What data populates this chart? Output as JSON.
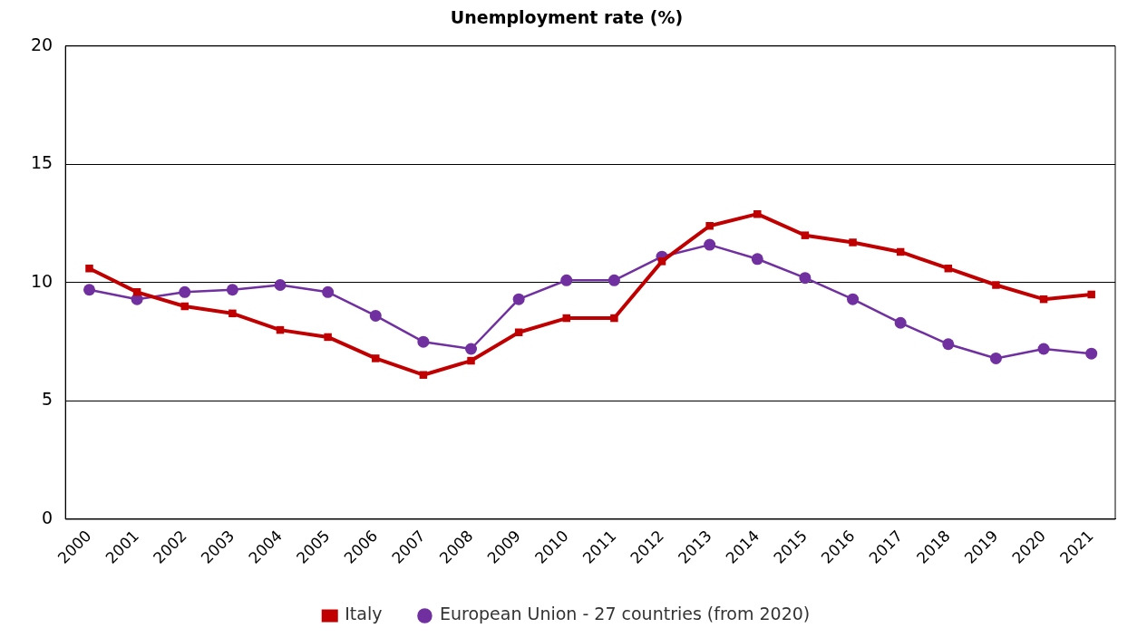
{
  "chart_data": {
    "type": "line",
    "title": "Unemployment rate (%)",
    "categories": [
      "2000",
      "2001",
      "2002",
      "2003",
      "2004",
      "2005",
      "2006",
      "2007",
      "2008",
      "2009",
      "2010",
      "2011",
      "2012",
      "2013",
      "2014",
      "2015",
      "2016",
      "2017",
      "2018",
      "2019",
      "2020",
      "2021"
    ],
    "series": [
      {
        "name": "Italy",
        "color": "#c00000",
        "marker": "square",
        "values": [
          10.6,
          9.6,
          9.0,
          8.7,
          8.0,
          7.7,
          6.8,
          6.1,
          6.7,
          7.9,
          8.5,
          8.5,
          10.9,
          12.4,
          12.9,
          12.0,
          11.7,
          11.3,
          10.6,
          9.9,
          9.3,
          9.5
        ]
      },
      {
        "name": "European Union - 27 countries (from 2020)",
        "color": "#7030a0",
        "marker": "circle",
        "values": [
          9.7,
          9.3,
          9.6,
          9.7,
          9.9,
          9.6,
          8.6,
          7.5,
          7.2,
          9.3,
          10.1,
          10.1,
          11.1,
          11.6,
          11.0,
          10.2,
          9.3,
          8.3,
          7.4,
          6.8,
          7.2,
          7.0
        ]
      }
    ],
    "ylim": [
      0,
      20
    ],
    "yticks": [
      0,
      5,
      10,
      15,
      20
    ],
    "grid": "y",
    "legend": "bottom",
    "line_style": "solid"
  }
}
